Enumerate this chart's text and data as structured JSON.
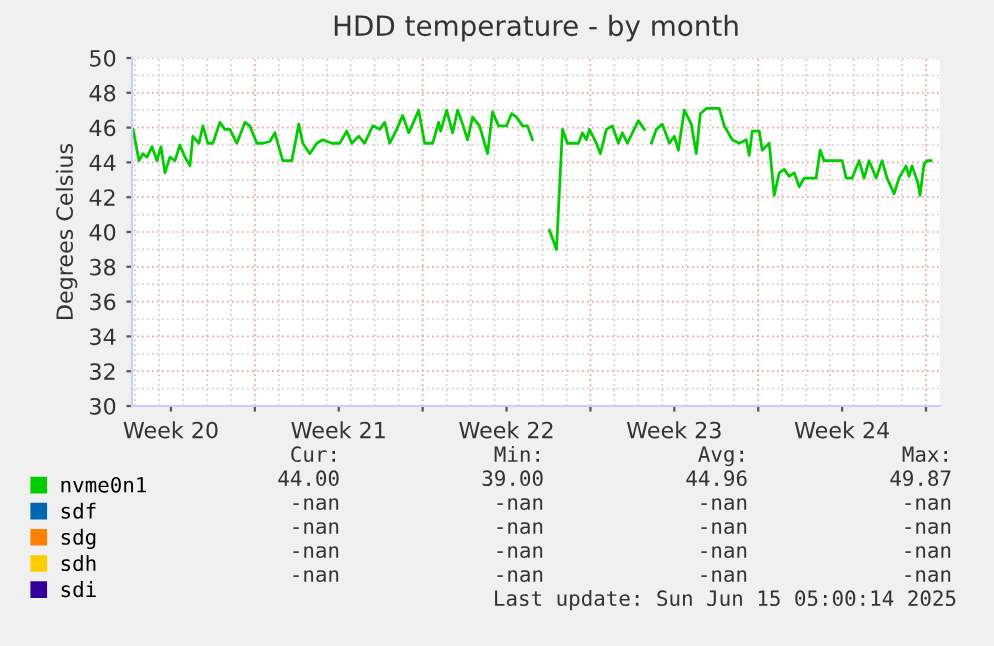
{
  "chart_data": {
    "type": "line",
    "title": "HDD temperature - by month",
    "ylabel": "Degrees Celsius",
    "x": [
      "2025-05-12T22:00",
      "2025-05-13T04:00",
      "2025-05-13T08:00",
      "2025-05-13T12:00",
      "2025-05-13T17:00",
      "2025-05-13T22:00",
      "2025-05-14T02:00",
      "2025-05-14T06:00",
      "2025-05-14T11:00",
      "2025-05-14T16:00",
      "2025-05-14T21:00",
      "2025-05-15T02:00",
      "2025-05-15T07:00",
      "2025-05-15T10:00",
      "2025-05-15T16:00",
      "2025-05-15T20:00",
      "2025-05-16T01:00",
      "2025-05-16T06:00",
      "2025-05-16T13:00",
      "2025-05-16T18:00",
      "2025-05-16T23:00",
      "2025-05-17T06:00",
      "2025-05-17T14:00",
      "2025-05-17T19:00",
      "2025-05-18T02:00",
      "2025-05-18T08:00",
      "2025-05-18T15:00",
      "2025-05-18T20:00",
      "2025-05-19T04:00",
      "2025-05-19T13:00",
      "2025-05-19T20:00",
      "2025-05-20T00:00",
      "2025-05-20T07:00",
      "2025-05-20T14:00",
      "2025-05-20T20:00",
      "2025-05-21T05:00",
      "2025-05-21T13:00",
      "2025-05-21T20:00",
      "2025-05-22T01:00",
      "2025-05-22T08:00",
      "2025-05-22T14:00",
      "2025-05-22T22:00",
      "2025-05-23T05:00",
      "2025-05-23T10:00",
      "2025-05-23T15:00",
      "2025-05-23T22:00",
      "2025-05-24T04:00",
      "2025-05-24T10:00",
      "2025-05-24T14:00",
      "2025-05-24T20:00",
      "2025-05-25T02:00",
      "2025-05-25T10:00",
      "2025-05-25T16:00",
      "2025-05-25T18:00",
      "2025-05-26T00:00",
      "2025-05-26T06:00",
      "2025-05-26T11:00",
      "2025-05-26T16:00",
      "2025-05-26T21:00",
      "2025-05-27T02:00",
      "2025-05-27T09:00",
      "2025-05-27T17:00",
      "2025-05-27T22:00",
      "2025-05-28T04:00",
      "2025-05-28T12:00",
      "2025-05-28T17:00",
      "2025-05-28T22:00",
      "2025-05-29T04:00",
      "2025-05-29T09:00",
      "2025-05-29T14:00",
      "2025-05-29T21:00",
      "2025-05-30T07:00",
      "2025-05-30T14:00",
      "2025-05-30T20:00",
      "2025-05-31T01:00",
      "2025-05-31T12:00",
      "2025-05-31T16:00",
      "2025-05-31T20:00",
      "2025-05-31T23:00",
      "2025-06-01T06:00",
      "2025-06-01T10:00",
      "2025-06-01T16:00",
      "2025-06-01T22:00",
      "2025-06-02T04:00",
      "2025-06-02T08:00",
      "2025-06-02T13:00",
      "2025-06-02T18:00",
      "2025-06-03T00:00",
      "2025-06-03T06:00",
      "2025-06-03T09:00",
      "2025-06-03T13:00",
      "2025-06-03T18:00",
      "2025-06-04T00:00",
      "2025-06-04T07:00",
      "2025-06-04T12:00",
      "2025-06-04T16:00",
      "2025-06-04T22:00",
      "2025-06-05T05:00",
      "2025-06-05T10:00",
      "2025-06-05T14:00",
      "2025-06-05T20:00",
      "2025-06-06T09:00",
      "2025-06-06T14:00",
      "2025-06-06T22:00",
      "2025-06-07T05:00",
      "2025-06-07T12:00",
      "2025-06-07T15:00",
      "2025-06-07T18:00",
      "2025-06-08T01:00",
      "2025-06-08T04:00",
      "2025-06-08T11:00",
      "2025-06-08T16:00",
      "2025-06-08T21:00",
      "2025-06-09T02:00",
      "2025-06-09T07:00",
      "2025-06-09T12:00",
      "2025-06-09T17:00",
      "2025-06-09T22:00",
      "2025-06-10T10:00",
      "2025-06-10T14:00",
      "2025-06-10T18:00",
      "2025-06-11T02:00",
      "2025-06-11T12:00",
      "2025-06-11T16:00",
      "2025-06-11T22:00",
      "2025-06-12T05:00",
      "2025-06-12T10:00",
      "2025-06-12T15:00",
      "2025-06-12T22:00",
      "2025-06-13T04:00",
      "2025-06-13T09:00",
      "2025-06-13T16:00",
      "2025-06-13T21:00",
      "2025-06-14T04:00",
      "2025-06-14T07:00",
      "2025-06-14T10:00",
      "2025-06-14T16:00",
      "2025-06-14T18:00",
      "2025-06-14T22:00",
      "2025-06-15T01:00",
      "2025-06-15T05:00"
    ],
    "series": [
      {
        "name": "nvme0n1",
        "color": "#00cc00",
        "values": [
          45.9,
          44.1,
          44.5,
          44.3,
          44.9,
          44.1,
          44.9,
          43.4,
          44.3,
          44.1,
          45.0,
          44.3,
          43.8,
          45.5,
          45.1,
          46.1,
          45.1,
          45.1,
          46.3,
          45.9,
          45.9,
          45.1,
          46.3,
          46.1,
          45.1,
          45.1,
          45.2,
          45.7,
          44.1,
          44.1,
          46.2,
          45.1,
          44.5,
          45.1,
          45.3,
          45.1,
          45.1,
          45.8,
          45.1,
          45.5,
          45.1,
          46.1,
          45.9,
          46.3,
          45.1,
          45.9,
          46.7,
          45.7,
          46.2,
          47.0,
          45.1,
          45.1,
          46.3,
          45.8,
          47.0,
          45.7,
          47.0,
          46.2,
          45.3,
          46.6,
          46.1,
          44.5,
          46.9,
          46.1,
          46.1,
          46.8,
          46.6,
          46.1,
          46.1,
          45.3,
          null,
          40.1,
          39.0,
          45.9,
          45.1,
          45.1,
          45.7,
          45.3,
          45.9,
          45.1,
          44.5,
          45.9,
          46.1,
          45.1,
          45.7,
          45.1,
          45.7,
          46.4,
          45.9,
          null,
          45.1,
          45.9,
          46.2,
          45.1,
          45.5,
          44.7,
          47.0,
          46.2,
          44.5,
          46.8,
          47.1,
          47.1,
          46.1,
          45.3,
          45.1,
          45.3,
          44.4,
          45.8,
          45.8,
          44.7,
          45.1,
          42.1,
          43.4,
          43.6,
          43.2,
          43.4,
          42.6,
          43.1,
          43.1,
          44.7,
          44.1,
          44.1,
          44.1,
          43.1,
          43.1,
          44.1,
          43.1,
          44.1,
          43.1,
          44.1,
          43.1,
          42.2,
          43.1,
          43.8,
          43.2,
          43.8,
          42.8,
          42.1,
          43.9,
          44.1,
          44.1
        ]
      },
      {
        "name": "sdf",
        "color": "#0066b3",
        "values": [
          null,
          null,
          null,
          null,
          null,
          null,
          null,
          null,
          null,
          null,
          null,
          null,
          null,
          null,
          null,
          null,
          null,
          null,
          null,
          null,
          null,
          null,
          null,
          null,
          null,
          null,
          null,
          null,
          null,
          null,
          null,
          null,
          null,
          null,
          null,
          null,
          null,
          null,
          null,
          null,
          null,
          null,
          null,
          null,
          null,
          null,
          null,
          null,
          null,
          null,
          null,
          null,
          null,
          null,
          null,
          null,
          null,
          null,
          null,
          null,
          null,
          null,
          null,
          null,
          null,
          null,
          null,
          null,
          null,
          null,
          null,
          null,
          null,
          null,
          null,
          null,
          null,
          null,
          null,
          null,
          null,
          null,
          null,
          null,
          null,
          null,
          null,
          null,
          null,
          null,
          null,
          null,
          null,
          null,
          null,
          null,
          null,
          null,
          null,
          null,
          null,
          null,
          null,
          null,
          null,
          null,
          null,
          null,
          null,
          null,
          null,
          null,
          null,
          null,
          null,
          null,
          null,
          null,
          null,
          null,
          null,
          null,
          null,
          null,
          null,
          null,
          null,
          null,
          null,
          null,
          null,
          null,
          null,
          null,
          null,
          null,
          null,
          null,
          null,
          null,
          null
        ]
      },
      {
        "name": "sdg",
        "color": "#ff8000",
        "values": [
          null,
          null,
          null,
          null,
          null,
          null,
          null,
          null,
          null,
          null,
          null,
          null,
          null,
          null,
          null,
          null,
          null,
          null,
          null,
          null,
          null,
          null,
          null,
          null,
          null,
          null,
          null,
          null,
          null,
          null,
          null,
          null,
          null,
          null,
          null,
          null,
          null,
          null,
          null,
          null,
          null,
          null,
          null,
          null,
          null,
          null,
          null,
          null,
          null,
          null,
          null,
          null,
          null,
          null,
          null,
          null,
          null,
          null,
          null,
          null,
          null,
          null,
          null,
          null,
          null,
          null,
          null,
          null,
          null,
          null,
          null,
          null,
          null,
          null,
          null,
          null,
          null,
          null,
          null,
          null,
          null,
          null,
          null,
          null,
          null,
          null,
          null,
          null,
          null,
          null,
          null,
          null,
          null,
          null,
          null,
          null,
          null,
          null,
          null,
          null,
          null,
          null,
          null,
          null,
          null,
          null,
          null,
          null,
          null,
          null,
          null,
          null,
          null,
          null,
          null,
          null,
          null,
          null,
          null,
          null,
          null,
          null,
          null,
          null,
          null,
          null,
          null,
          null,
          null,
          null,
          null,
          null,
          null,
          null,
          null,
          null,
          null,
          null,
          null,
          null,
          null
        ]
      },
      {
        "name": "sdh",
        "color": "#ffcc00",
        "values": [
          null,
          null,
          null,
          null,
          null,
          null,
          null,
          null,
          null,
          null,
          null,
          null,
          null,
          null,
          null,
          null,
          null,
          null,
          null,
          null,
          null,
          null,
          null,
          null,
          null,
          null,
          null,
          null,
          null,
          null,
          null,
          null,
          null,
          null,
          null,
          null,
          null,
          null,
          null,
          null,
          null,
          null,
          null,
          null,
          null,
          null,
          null,
          null,
          null,
          null,
          null,
          null,
          null,
          null,
          null,
          null,
          null,
          null,
          null,
          null,
          null,
          null,
          null,
          null,
          null,
          null,
          null,
          null,
          null,
          null,
          null,
          null,
          null,
          null,
          null,
          null,
          null,
          null,
          null,
          null,
          null,
          null,
          null,
          null,
          null,
          null,
          null,
          null,
          null,
          null,
          null,
          null,
          null,
          null,
          null,
          null,
          null,
          null,
          null,
          null,
          null,
          null,
          null,
          null,
          null,
          null,
          null,
          null,
          null,
          null,
          null,
          null,
          null,
          null,
          null,
          null,
          null,
          null,
          null,
          null,
          null,
          null,
          null,
          null,
          null,
          null,
          null,
          null,
          null,
          null,
          null,
          null,
          null,
          null,
          null,
          null,
          null,
          null,
          null,
          null,
          null
        ]
      },
      {
        "name": "sdi",
        "color": "#330099",
        "values": [
          null,
          null,
          null,
          null,
          null,
          null,
          null,
          null,
          null,
          null,
          null,
          null,
          null,
          null,
          null,
          null,
          null,
          null,
          null,
          null,
          null,
          null,
          null,
          null,
          null,
          null,
          null,
          null,
          null,
          null,
          null,
          null,
          null,
          null,
          null,
          null,
          null,
          null,
          null,
          null,
          null,
          null,
          null,
          null,
          null,
          null,
          null,
          null,
          null,
          null,
          null,
          null,
          null,
          null,
          null,
          null,
          null,
          null,
          null,
          null,
          null,
          null,
          null,
          null,
          null,
          null,
          null,
          null,
          null,
          null,
          null,
          null,
          null,
          null,
          null,
          null,
          null,
          null,
          null,
          null,
          null,
          null,
          null,
          null,
          null,
          null,
          null,
          null,
          null,
          null,
          null,
          null,
          null,
          null,
          null,
          null,
          null,
          null,
          null,
          null,
          null,
          null,
          null,
          null,
          null,
          null,
          null,
          null,
          null,
          null,
          null,
          null,
          null,
          null,
          null,
          null,
          null,
          null,
          null,
          null,
          null,
          null,
          null,
          null,
          null,
          null,
          null,
          null,
          null,
          null,
          null,
          null,
          null,
          null,
          null,
          null,
          null,
          null,
          null,
          null,
          null
        ]
      }
    ],
    "xlim": [
      "2025-05-12T21:00",
      "2025-06-15T14:00"
    ],
    "xticks": [
      {
        "value": "2025-05-14T12:00",
        "label": "Week 20"
      },
      {
        "value": "2025-05-18T00:00",
        "label": null
      },
      {
        "value": "2025-05-21T12:00",
        "label": "Week 21"
      },
      {
        "value": "2025-05-25T00:00",
        "label": null
      },
      {
        "value": "2025-05-28T12:00",
        "label": "Week 22"
      },
      {
        "value": "2025-06-01T00:00",
        "label": null
      },
      {
        "value": "2025-06-04T12:00",
        "label": "Week 23"
      },
      {
        "value": "2025-06-08T00:00",
        "label": null
      },
      {
        "value": "2025-06-11T12:00",
        "label": "Week 24"
      },
      {
        "value": "2025-06-15T00:00",
        "label": null
      }
    ],
    "ylim": [
      30,
      50
    ],
    "yticks": [
      30,
      32,
      34,
      36,
      38,
      40,
      42,
      44,
      46,
      48,
      50
    ],
    "grid": true,
    "legend": "bottom",
    "annotations": [
      "Cur:",
      "Min:",
      "Avg:",
      "Max:",
      "44.00",
      "39.00",
      "44.96",
      "49.87",
      "-nan",
      "-nan",
      "-nan",
      "-nan",
      "-nan",
      "-nan",
      "-nan",
      "-nan",
      "-nan",
      "-nan",
      "-nan",
      "-nan",
      "-nan",
      "-nan",
      "-nan",
      "-nan",
      "Last update: Sun Jun 15 05:00:14 2025"
    ]
  }
}
